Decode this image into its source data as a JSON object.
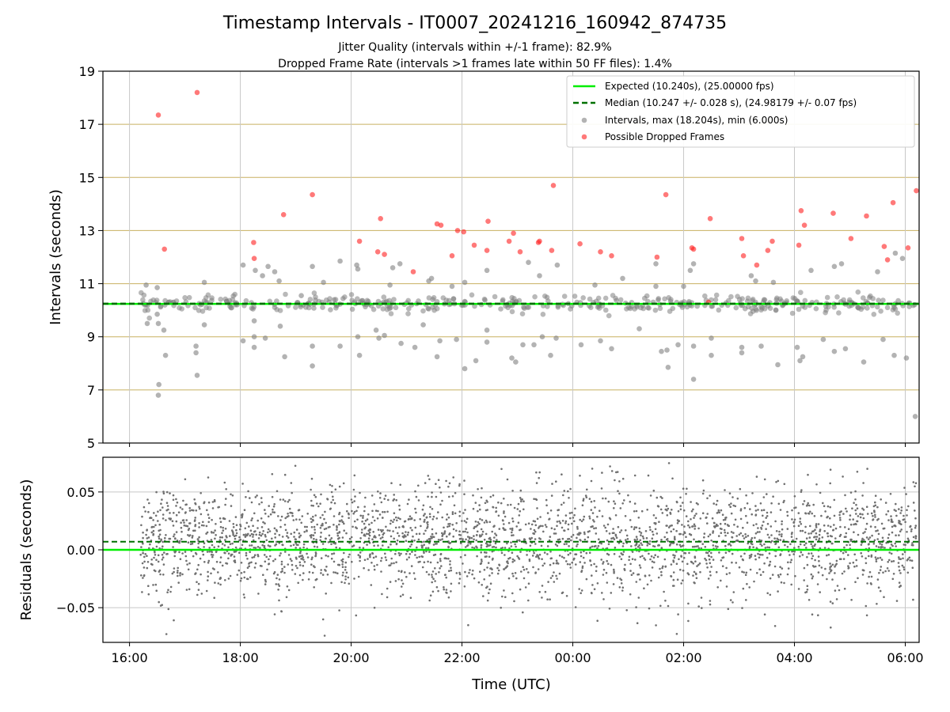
{
  "chart_data": [
    {
      "type": "scatter",
      "title": "Timestamp Intervals - IT0007_20241216_160942_874735",
      "subtitle_lines": [
        "Jitter Quality (intervals within +/-1 frame): 82.9%",
        "Dropped Frame Rate (intervals >1 frames late within 50 FF files): 1.4%"
      ],
      "ylabel": "Intervals (seconds)",
      "ylim": [
        5,
        19
      ],
      "yticks": [
        "5",
        "7",
        "9",
        "11",
        "13",
        "15",
        "17",
        "19"
      ],
      "grid": true,
      "legend_position": "top-right",
      "expected_value": 10.24,
      "median_value": 10.247,
      "colors": {
        "expected": "#00ee00",
        "median": "#007000",
        "interval": "#808080",
        "dropped": "#ff2020",
        "grid_y": "#c8b060",
        "grid_x": "#c8c8c8"
      },
      "legend": [
        {
          "label": "Expected (10.240s), (25.00000 fps)",
          "kind": "line-solid"
        },
        {
          "label": "Median (10.247 +/- 0.028 s), (24.98179 +/- 0.07 fps)",
          "kind": "line-dashed"
        },
        {
          "label": "Intervals, max (18.204s), min (6.000s)",
          "kind": "dot-gray"
        },
        {
          "label": "Possible Dropped Frames",
          "kind": "dot-red"
        }
      ],
      "dropped_frames": [
        {
          "x": 16.52,
          "y": 17.35
        },
        {
          "x": 16.63,
          "y": 12.3
        },
        {
          "x": 17.22,
          "y": 18.2
        },
        {
          "x": 18.24,
          "y": 12.55
        },
        {
          "x": 18.25,
          "y": 11.95
        },
        {
          "x": 18.78,
          "y": 13.6
        },
        {
          "x": 19.3,
          "y": 14.35
        },
        {
          "x": 20.15,
          "y": 12.6
        },
        {
          "x": 20.48,
          "y": 12.2
        },
        {
          "x": 20.53,
          "y": 13.45
        },
        {
          "x": 20.6,
          "y": 12.1
        },
        {
          "x": 21.12,
          "y": 11.45
        },
        {
          "x": 21.55,
          "y": 13.25
        },
        {
          "x": 21.62,
          "y": 13.2
        },
        {
          "x": 21.82,
          "y": 12.05
        },
        {
          "x": 21.92,
          "y": 13.0
        },
        {
          "x": 22.03,
          "y": 12.95
        },
        {
          "x": 22.22,
          "y": 12.45
        },
        {
          "x": 22.45,
          "y": 12.25
        },
        {
          "x": 22.47,
          "y": 13.35
        },
        {
          "x": 22.85,
          "y": 12.6
        },
        {
          "x": 22.93,
          "y": 12.9
        },
        {
          "x": 23.05,
          "y": 12.2
        },
        {
          "x": 23.38,
          "y": 12.55
        },
        {
          "x": 23.4,
          "y": 12.6
        },
        {
          "x": 23.62,
          "y": 12.25
        },
        {
          "x": 23.65,
          "y": 14.7
        },
        {
          "x": 24.13,
          "y": 12.5
        },
        {
          "x": 24.5,
          "y": 12.2
        },
        {
          "x": 24.7,
          "y": 12.05
        },
        {
          "x": 25.52,
          "y": 12.0
        },
        {
          "x": 25.68,
          "y": 14.35
        },
        {
          "x": 26.15,
          "y": 12.35
        },
        {
          "x": 26.18,
          "y": 12.3
        },
        {
          "x": 26.45,
          "y": 10.3
        },
        {
          "x": 26.48,
          "y": 13.45
        },
        {
          "x": 27.05,
          "y": 12.7
        },
        {
          "x": 27.08,
          "y": 12.05
        },
        {
          "x": 27.32,
          "y": 11.7
        },
        {
          "x": 27.52,
          "y": 12.25
        },
        {
          "x": 27.6,
          "y": 12.6
        },
        {
          "x": 28.08,
          "y": 12.45
        },
        {
          "x": 28.12,
          "y": 13.75
        },
        {
          "x": 28.18,
          "y": 13.2
        },
        {
          "x": 28.7,
          "y": 13.65
        },
        {
          "x": 29.02,
          "y": 12.7
        },
        {
          "x": 29.3,
          "y": 13.55
        },
        {
          "x": 29.62,
          "y": 12.4
        },
        {
          "x": 29.68,
          "y": 11.9
        },
        {
          "x": 29.78,
          "y": 14.05
        },
        {
          "x": 30.05,
          "y": 12.35
        },
        {
          "x": 30.2,
          "y": 14.5
        }
      ],
      "interval_outliers": [
        {
          "x": 16.3,
          "y": 10.95
        },
        {
          "x": 16.32,
          "y": 9.5
        },
        {
          "x": 16.5,
          "y": 9.85
        },
        {
          "x": 16.52,
          "y": 9.5
        },
        {
          "x": 16.53,
          "y": 7.2
        },
        {
          "x": 16.52,
          "y": 6.8
        },
        {
          "x": 16.5,
          "y": 10.85
        },
        {
          "x": 16.65,
          "y": 8.3
        },
        {
          "x": 16.62,
          "y": 9.25
        },
        {
          "x": 17.2,
          "y": 8.65
        },
        {
          "x": 17.2,
          "y": 8.4
        },
        {
          "x": 17.22,
          "y": 7.55
        },
        {
          "x": 17.35,
          "y": 11.05
        },
        {
          "x": 17.35,
          "y": 9.45
        },
        {
          "x": 18.05,
          "y": 11.7
        },
        {
          "x": 18.05,
          "y": 8.85
        },
        {
          "x": 18.25,
          "y": 9.6
        },
        {
          "x": 18.25,
          "y": 9.0
        },
        {
          "x": 18.25,
          "y": 8.6
        },
        {
          "x": 18.27,
          "y": 11.5
        },
        {
          "x": 18.4,
          "y": 11.3
        },
        {
          "x": 18.45,
          "y": 8.95
        },
        {
          "x": 18.5,
          "y": 11.65
        },
        {
          "x": 18.62,
          "y": 11.45
        },
        {
          "x": 18.7,
          "y": 11.1
        },
        {
          "x": 18.72,
          "y": 9.4
        },
        {
          "x": 18.8,
          "y": 8.25
        },
        {
          "x": 19.1,
          "y": 10.55
        },
        {
          "x": 19.3,
          "y": 11.65
        },
        {
          "x": 19.3,
          "y": 8.65
        },
        {
          "x": 19.3,
          "y": 7.9
        },
        {
          "x": 19.5,
          "y": 11.05
        },
        {
          "x": 19.8,
          "y": 11.85
        },
        {
          "x": 19.8,
          "y": 8.65
        },
        {
          "x": 20.1,
          "y": 11.7
        },
        {
          "x": 20.12,
          "y": 11.55
        },
        {
          "x": 20.12,
          "y": 9.0
        },
        {
          "x": 20.15,
          "y": 8.3
        },
        {
          "x": 20.45,
          "y": 9.25
        },
        {
          "x": 20.5,
          "y": 8.95
        },
        {
          "x": 20.6,
          "y": 9.05
        },
        {
          "x": 20.7,
          "y": 10.95
        },
        {
          "x": 20.75,
          "y": 11.6
        },
        {
          "x": 20.88,
          "y": 11.75
        },
        {
          "x": 20.9,
          "y": 8.75
        },
        {
          "x": 21.15,
          "y": 8.6
        },
        {
          "x": 21.3,
          "y": 9.45
        },
        {
          "x": 21.4,
          "y": 11.1
        },
        {
          "x": 21.45,
          "y": 11.2
        },
        {
          "x": 21.55,
          "y": 8.25
        },
        {
          "x": 21.6,
          "y": 8.85
        },
        {
          "x": 21.82,
          "y": 10.9
        },
        {
          "x": 21.9,
          "y": 8.9
        },
        {
          "x": 22.05,
          "y": 7.8
        },
        {
          "x": 22.05,
          "y": 11.05
        },
        {
          "x": 22.25,
          "y": 8.1
        },
        {
          "x": 22.45,
          "y": 11.5
        },
        {
          "x": 22.45,
          "y": 9.25
        },
        {
          "x": 22.45,
          "y": 8.8
        },
        {
          "x": 22.9,
          "y": 8.2
        },
        {
          "x": 22.97,
          "y": 8.05
        },
        {
          "x": 23.1,
          "y": 8.7
        },
        {
          "x": 23.2,
          "y": 11.8
        },
        {
          "x": 23.3,
          "y": 8.7
        },
        {
          "x": 23.4,
          "y": 11.3
        },
        {
          "x": 23.45,
          "y": 9.0
        },
        {
          "x": 23.6,
          "y": 8.3
        },
        {
          "x": 23.72,
          "y": 11.7
        },
        {
          "x": 23.7,
          "y": 8.95
        },
        {
          "x": 24.15,
          "y": 8.7
        },
        {
          "x": 24.4,
          "y": 10.95
        },
        {
          "x": 24.5,
          "y": 8.85
        },
        {
          "x": 24.7,
          "y": 8.55
        },
        {
          "x": 24.9,
          "y": 11.2
        },
        {
          "x": 25.2,
          "y": 9.3
        },
        {
          "x": 25.5,
          "y": 10.9
        },
        {
          "x": 25.5,
          "y": 11.75
        },
        {
          "x": 25.6,
          "y": 8.45
        },
        {
          "x": 25.7,
          "y": 8.5
        },
        {
          "x": 25.72,
          "y": 7.85
        },
        {
          "x": 25.9,
          "y": 8.7
        },
        {
          "x": 26.0,
          "y": 10.9
        },
        {
          "x": 26.12,
          "y": 11.5
        },
        {
          "x": 26.18,
          "y": 11.75
        },
        {
          "x": 26.18,
          "y": 8.65
        },
        {
          "x": 26.18,
          "y": 7.4
        },
        {
          "x": 26.5,
          "y": 8.3
        },
        {
          "x": 26.5,
          "y": 8.95
        },
        {
          "x": 27.05,
          "y": 8.6
        },
        {
          "x": 27.05,
          "y": 8.4
        },
        {
          "x": 27.22,
          "y": 11.3
        },
        {
          "x": 27.3,
          "y": 11.1
        },
        {
          "x": 27.4,
          "y": 8.65
        },
        {
          "x": 27.7,
          "y": 7.95
        },
        {
          "x": 27.62,
          "y": 11.05
        },
        {
          "x": 28.05,
          "y": 8.6
        },
        {
          "x": 28.1,
          "y": 8.1
        },
        {
          "x": 28.15,
          "y": 8.25
        },
        {
          "x": 28.3,
          "y": 11.5
        },
        {
          "x": 28.52,
          "y": 8.9
        },
        {
          "x": 28.72,
          "y": 8.45
        },
        {
          "x": 28.72,
          "y": 11.65
        },
        {
          "x": 28.85,
          "y": 11.75
        },
        {
          "x": 28.92,
          "y": 8.55
        },
        {
          "x": 29.25,
          "y": 8.05
        },
        {
          "x": 29.5,
          "y": 11.45
        },
        {
          "x": 29.6,
          "y": 8.9
        },
        {
          "x": 29.8,
          "y": 8.3
        },
        {
          "x": 29.82,
          "y": 12.15
        },
        {
          "x": 29.95,
          "y": 11.95
        },
        {
          "x": 30.02,
          "y": 8.2
        },
        {
          "x": 30.18,
          "y": 6.0
        }
      ],
      "interval_band": {
        "center": 10.24,
        "spread": 0.28,
        "x_range": [
          16.2,
          30.2
        ]
      }
    },
    {
      "type": "scatter",
      "ylabel": "Residuals (seconds)",
      "xlabel": "Time (UTC)",
      "ylim": [
        -0.08,
        0.08
      ],
      "yticks": [
        "0.05",
        "0.00",
        "−0.05"
      ],
      "ytick_values": [
        0.05,
        0.0,
        -0.05
      ],
      "xlim": [
        15.52,
        30.25
      ],
      "xticks": [
        "16:00",
        "18:00",
        "20:00",
        "22:00",
        "00:00",
        "02:00",
        "04:00",
        "06:00"
      ],
      "xtick_values": [
        16,
        18,
        20,
        22,
        24,
        26,
        28,
        30
      ],
      "expected_residual": 0.0,
      "median_residual": 0.007,
      "residual_points": {
        "count": 3000,
        "x_range": [
          16.2,
          30.2
        ],
        "center": 0.007,
        "std": 0.024
      },
      "grid": true
    }
  ]
}
